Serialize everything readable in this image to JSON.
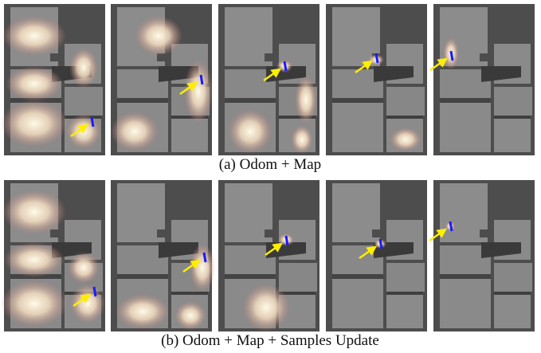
{
  "figure": {
    "captions": [
      "(a) Odom + Map",
      "(b) Odom + Map + Samples Update"
    ]
  }
}
